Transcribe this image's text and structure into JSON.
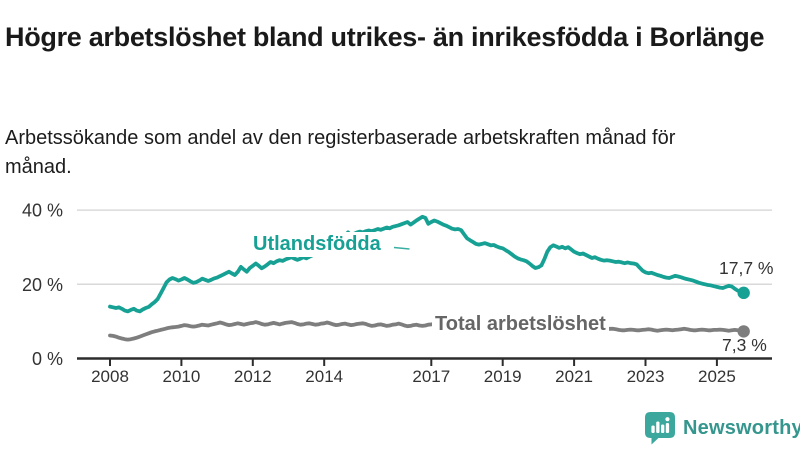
{
  "header": {
    "title": "Högre arbetslöshet bland utrikes- än inrikesfödda i Borlänge",
    "subtitle": "Arbetssökande som andel av den registerbaserade arbetskraften månad för månad."
  },
  "chart_data": {
    "type": "line",
    "title": "Högre arbetslöshet bland utrikes- än inrikesfödda i Borlänge",
    "subtitle": "Arbetssökande som andel av den registerbaserade arbetskraften månad för månad.",
    "unit": "%",
    "frequency": "monthly",
    "start_month": "2008-01",
    "end_month": "2025-10",
    "x_domain": [
      2008.0,
      2025.75
    ],
    "ylim": [
      0,
      42
    ],
    "grid": "horizontal",
    "y_ticks": [
      0,
      20,
      40
    ],
    "y_tick_labels": [
      "0 %",
      "20 %",
      "40 %"
    ],
    "x_tick_years": [
      2008,
      2010,
      2012,
      2014,
      2017,
      2019,
      2021,
      2023,
      2025
    ],
    "x_tick_labels": [
      "2008",
      "2010",
      "2012",
      "2014",
      "2017",
      "2019",
      "2021",
      "2023",
      "2025"
    ],
    "series": [
      {
        "name": "Total arbetslöshet",
        "color": "#7E7E7E",
        "label_color": "#666666",
        "end_value": 7.3,
        "end_label": "7,3 %",
        "values": [
          6.2,
          6.1,
          5.9,
          5.6,
          5.4,
          5.2,
          5.1,
          5.2,
          5.4,
          5.6,
          5.9,
          6.2,
          6.5,
          6.8,
          7.1,
          7.3,
          7.5,
          7.7,
          7.9,
          8.1,
          8.3,
          8.4,
          8.5,
          8.6,
          8.8,
          9.0,
          8.9,
          8.7,
          8.6,
          8.7,
          8.9,
          9.1,
          9.0,
          8.9,
          9.1,
          9.3,
          9.5,
          9.7,
          9.5,
          9.2,
          9.0,
          9.1,
          9.3,
          9.5,
          9.3,
          9.1,
          9.3,
          9.5,
          9.6,
          9.8,
          9.6,
          9.3,
          9.1,
          9.2,
          9.4,
          9.6,
          9.4,
          9.2,
          9.4,
          9.6,
          9.7,
          9.8,
          9.6,
          9.3,
          9.1,
          9.2,
          9.4,
          9.5,
          9.3,
          9.1,
          9.2,
          9.4,
          9.5,
          9.7,
          9.5,
          9.2,
          9.0,
          9.1,
          9.3,
          9.4,
          9.2,
          9.0,
          9.1,
          9.3,
          9.4,
          9.5,
          9.3,
          9.0,
          8.8,
          8.9,
          9.1,
          9.2,
          9.0,
          8.8,
          8.9,
          9.1,
          9.2,
          9.4,
          9.2,
          8.9,
          8.7,
          8.8,
          9.0,
          9.1,
          8.9,
          8.8,
          8.9,
          9.1,
          9.2,
          9.3,
          9.1,
          8.8,
          8.6,
          8.7,
          8.9,
          9.0,
          8.8,
          8.6,
          8.7,
          8.9,
          9.0,
          9.1,
          8.9,
          8.6,
          8.4,
          8.5,
          8.6,
          8.7,
          8.5,
          8.3,
          8.4,
          8.6,
          8.7,
          8.8,
          8.6,
          8.4,
          8.2,
          8.3,
          8.5,
          8.6,
          8.4,
          8.3,
          8.4,
          8.6,
          8.8,
          8.9,
          9.3,
          9.7,
          9.9,
          10.0,
          9.9,
          9.8,
          9.6,
          9.5,
          9.4,
          9.3,
          9.2,
          9.1,
          8.9,
          8.7,
          8.5,
          8.4,
          8.3,
          8.2,
          8.1,
          8.0,
          7.9,
          7.9,
          8.0,
          8.0,
          7.9,
          7.7,
          7.6,
          7.6,
          7.7,
          7.8,
          7.7,
          7.6,
          7.6,
          7.7,
          7.8,
          7.9,
          7.8,
          7.6,
          7.5,
          7.6,
          7.7,
          7.8,
          7.7,
          7.6,
          7.7,
          7.8,
          7.9,
          8.0,
          7.9,
          7.7,
          7.6,
          7.6,
          7.7,
          7.8,
          7.7,
          7.6,
          7.6,
          7.7,
          7.7,
          7.8,
          7.7,
          7.6,
          7.5,
          7.6,
          7.7,
          7.6,
          7.4,
          7.3
        ]
      },
      {
        "name": "Utlandsfödda",
        "color": "#16A194",
        "label_color": "#16A194",
        "end_value": 17.7,
        "end_label": "17,7 %",
        "values": [
          14.0,
          13.8,
          13.6,
          13.8,
          13.4,
          12.9,
          12.7,
          13.1,
          13.4,
          12.9,
          12.7,
          13.2,
          13.6,
          13.9,
          14.6,
          15.2,
          16.0,
          17.5,
          19.0,
          20.5,
          21.3,
          21.7,
          21.4,
          21.0,
          21.3,
          21.7,
          21.3,
          20.8,
          20.4,
          20.6,
          21.0,
          21.5,
          21.2,
          20.9,
          21.2,
          21.6,
          21.8,
          22.2,
          22.6,
          23.0,
          23.4,
          22.9,
          22.5,
          23.4,
          24.7,
          24.0,
          23.4,
          24.4,
          25.0,
          25.6,
          25.0,
          24.3,
          24.8,
          25.4,
          26.0,
          25.7,
          26.2,
          26.5,
          26.3,
          26.7,
          27.0,
          27.3,
          26.9,
          26.6,
          26.9,
          27.3,
          27.0,
          27.4,
          27.8,
          28.1,
          28.4,
          28.7,
          29.0,
          29.4,
          29.8,
          30.3,
          30.8,
          31.4,
          32.0,
          33.1,
          34.0,
          33.2,
          33.6,
          34.0,
          34.2,
          34.0,
          34.3,
          34.5,
          34.3,
          34.6,
          34.9,
          34.7,
          35.0,
          35.3,
          35.1,
          35.5,
          35.7,
          35.9,
          36.2,
          36.5,
          36.8,
          36.1,
          36.6,
          37.2,
          37.7,
          38.2,
          37.9,
          36.3,
          36.8,
          37.2,
          36.9,
          36.5,
          36.1,
          35.8,
          35.4,
          35.0,
          34.8,
          34.9,
          34.6,
          33.5,
          32.4,
          31.9,
          31.4,
          30.9,
          30.7,
          30.9,
          31.1,
          30.8,
          30.5,
          30.6,
          30.2,
          29.9,
          29.7,
          29.2,
          28.7,
          28.1,
          27.5,
          27.0,
          26.7,
          26.5,
          26.2,
          25.6,
          24.9,
          24.4,
          24.6,
          25.1,
          26.8,
          28.8,
          30.0,
          30.5,
          30.2,
          29.8,
          30.1,
          29.7,
          30.0,
          29.4,
          28.8,
          28.4,
          28.1,
          28.3,
          27.9,
          27.5,
          27.1,
          27.3,
          26.9,
          26.6,
          26.4,
          26.5,
          26.4,
          26.2,
          26.0,
          26.1,
          25.9,
          25.7,
          25.9,
          25.7,
          25.6,
          25.4,
          24.5,
          23.7,
          23.2,
          23.0,
          23.1,
          22.8,
          22.5,
          22.3,
          22.0,
          21.8,
          21.7,
          22.0,
          22.3,
          22.1,
          21.9,
          21.6,
          21.4,
          21.2,
          21.0,
          20.7,
          20.4,
          20.2,
          20.0,
          19.8,
          19.7,
          19.5,
          19.3,
          19.1,
          19.0,
          19.3,
          19.6,
          19.4,
          18.8,
          18.3,
          17.9,
          17.7
        ]
      }
    ],
    "legend_position": "inline-labels"
  },
  "annotations": {
    "utlandsfodda_label": "Utlandsfödda",
    "total_label": "Total arbetslöshet",
    "utlandsfodda_end_label": "17,7 %",
    "total_end_label": "7,3 %"
  },
  "footer": {
    "brand": "Newsworthy"
  },
  "colors": {
    "teal_line": "#16A194",
    "gray_line": "#7E7E7E",
    "gray_label": "#666666",
    "grid": "#D9D9D9",
    "axis_line": "#2D2D2D",
    "axis_text": "#333333",
    "annotation_text": "#333333",
    "logo_bubble": "#3BA79D",
    "logo_text": "#35968E"
  }
}
